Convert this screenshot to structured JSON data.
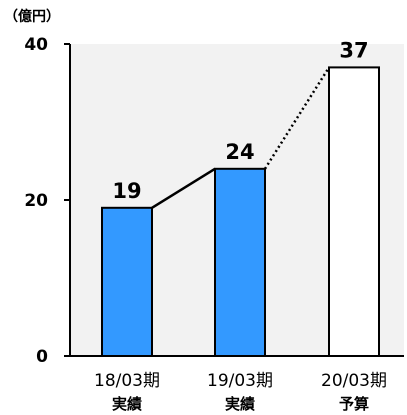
{
  "chart_data": {
    "type": "bar",
    "unit_label": "（億円）",
    "categories": [
      {
        "line1": "18/03期",
        "line2": "実績"
      },
      {
        "line1": "19/03期",
        "line2": "実績"
      },
      {
        "line1": "20/03期",
        "line2": "予算"
      }
    ],
    "values": [
      19,
      24,
      37
    ],
    "value_labels": [
      "19",
      "24",
      "37"
    ],
    "bar_styles": [
      "actual",
      "actual",
      "budget"
    ],
    "connectors": [
      "solid",
      "dotted"
    ],
    "ylim": [
      0,
      40
    ],
    "yticks": [
      "0",
      "20",
      "40"
    ],
    "grid": false,
    "colors": {
      "actual_fill": "#3399FF",
      "budget_fill": "#FFFFFF",
      "bar_stroke": "#000000",
      "plot_background": "#F2F2F2",
      "text": "#000000"
    }
  }
}
